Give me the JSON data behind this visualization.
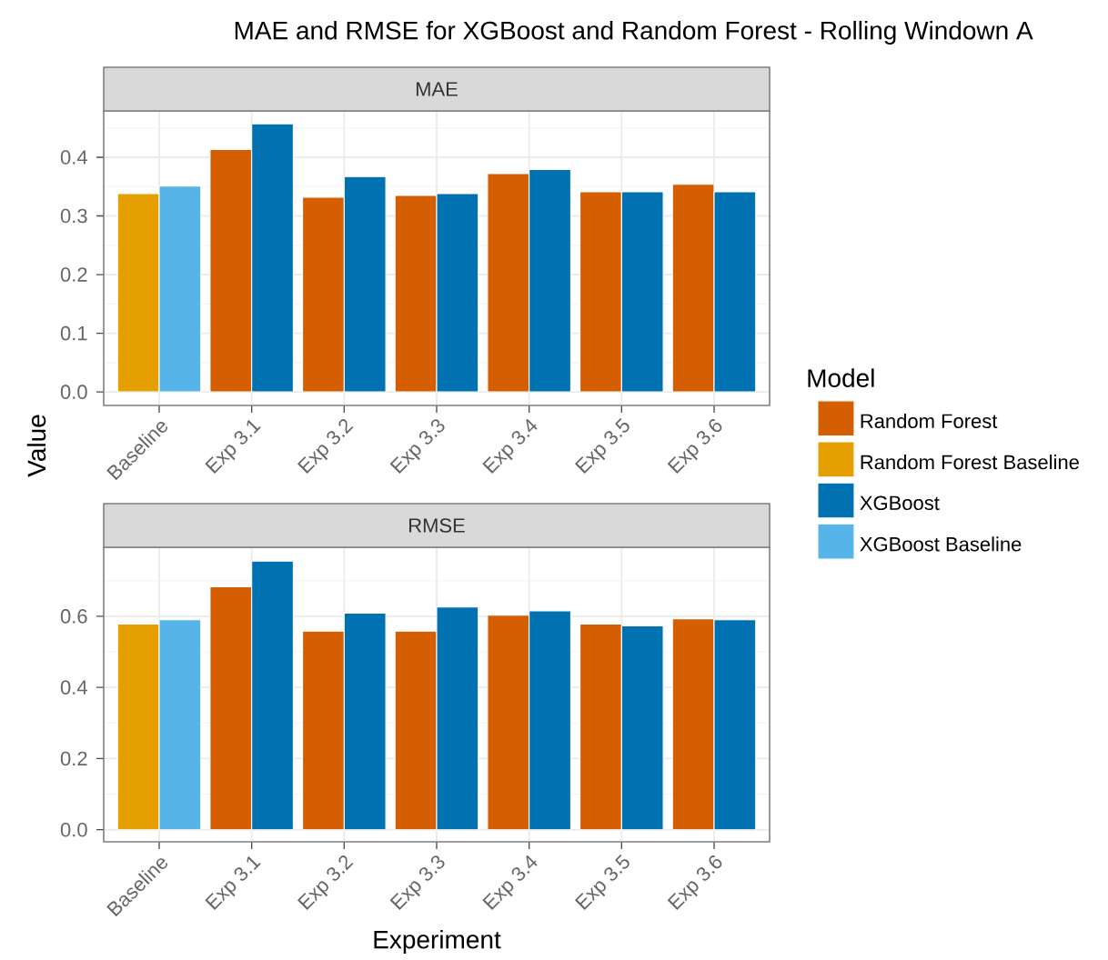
{
  "chart_data": [
    {
      "type": "bar",
      "title": "MAE and RMSE for XGBoost and Random Forest - Rolling Windown A",
      "subtitle": "MAE",
      "ylabel": "Value",
      "legend_title": "Model",
      "legend": "right",
      "grid": true,
      "categories": [
        "Baseline",
        "Exp 3.1",
        "Exp 3.2",
        "Exp 3.3",
        "Exp 3.4",
        "Exp 3.5",
        "Exp 3.6"
      ],
      "ylim": [
        -0.023,
        0.479
      ],
      "yticks": [
        {
          "value": 0,
          "label": "0.0"
        },
        0.1,
        0.2,
        0.3,
        0.4
      ],
      "series": [
        {
          "name": "Random Forest",
          "color": "#d55e00",
          "values": [
            null,
            0.413,
            0.332,
            0.335,
            0.372,
            0.341,
            0.354
          ]
        },
        {
          "name": "Random Forest Baseline",
          "color": "#e69f00",
          "values": [
            0.338,
            null,
            null,
            null,
            null,
            null,
            null
          ]
        },
        {
          "name": "XGBoost",
          "color": "#0072b2",
          "values": [
            null,
            0.457,
            0.367,
            0.338,
            0.379,
            0.341,
            0.341
          ]
        },
        {
          "name": "XGBoost Baseline",
          "color": "#56b4e9",
          "values": [
            0.351,
            null,
            null,
            null,
            null,
            null,
            null
          ]
        }
      ]
    },
    {
      "type": "bar",
      "subtitle": "RMSE",
      "xlabel": "Experiment",
      "grid": true,
      "categories": [
        "Baseline",
        "Exp 3.1",
        "Exp 3.2",
        "Exp 3.3",
        "Exp 3.4",
        "Exp 3.5",
        "Exp 3.6"
      ],
      "ylim": [
        -0.034,
        0.794
      ],
      "yticks": [
        {
          "value": 0,
          "label": "0.0"
        },
        0.2,
        0.4,
        0.6
      ],
      "series": [
        {
          "color": "#d55e00",
          "values": [
            null,
            0.683,
            0.558,
            0.558,
            0.603,
            0.578,
            0.593
          ]
        },
        {
          "color": "#e69f00",
          "values": [
            0.578,
            null,
            null,
            null,
            null,
            null,
            null
          ]
        },
        {
          "color": "#0072b2",
          "values": [
            null,
            0.755,
            0.609,
            0.626,
            0.615,
            0.573,
            0.59
          ]
        },
        {
          "color": "#56b4e9",
          "values": [
            0.59,
            null,
            null,
            null,
            null,
            null,
            null
          ]
        }
      ]
    }
  ]
}
